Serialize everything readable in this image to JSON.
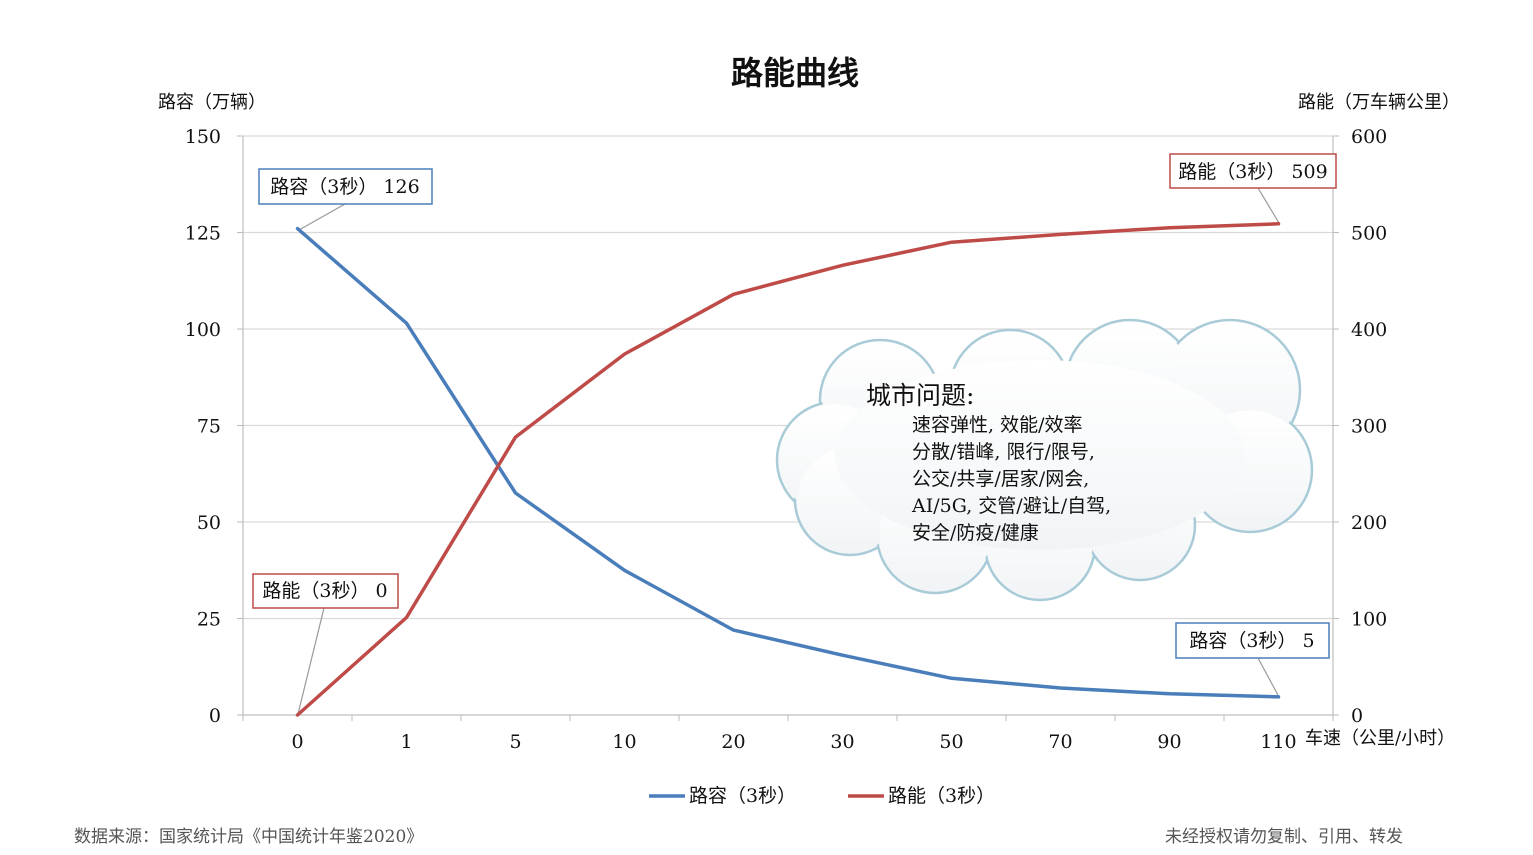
{
  "chart_data": {
    "type": "line",
    "title": "路能曲线",
    "y_left_label": "路容（万辆）",
    "y_right_label": "路能（万车辆公里）",
    "x_label": "车速（公里/小时）",
    "categories": [
      "0",
      "1",
      "5",
      "10",
      "20",
      "30",
      "50",
      "70",
      "90",
      "110"
    ],
    "ylim_left": [
      0,
      150
    ],
    "ylim_right": [
      0,
      600
    ],
    "yticks_left": [
      "0",
      "25",
      "50",
      "75",
      "100",
      "125",
      "150"
    ],
    "yticks_right": [
      "0",
      "100",
      "200",
      "300",
      "400",
      "500",
      "600"
    ],
    "grid": true,
    "legend_position": "bottom",
    "series": [
      {
        "name": "路容（3秒）",
        "axis": "left",
        "color": "#4a7ebb",
        "values": [
          126,
          101.5,
          57.5,
          37.5,
          22,
          15.5,
          9.5,
          7,
          5.5,
          4.7
        ]
      },
      {
        "name": "路能（3秒）",
        "axis": "right",
        "color": "#be4b48",
        "values": [
          0,
          101,
          288,
          374,
          436,
          466,
          490,
          498,
          505,
          509
        ]
      }
    ],
    "annotations": [
      {
        "text": "路容（3秒） 126",
        "color": "#4a7ebb"
      },
      {
        "text": "路能（3秒） 0",
        "color": "#be4b48"
      },
      {
        "text": "路能（3秒） 509",
        "color": "#be4b48"
      },
      {
        "text": "路容（3秒） 5",
        "color": "#4a7ebb"
      }
    ],
    "callout": {
      "title": "城市问题:",
      "lines": [
        "速容弹性, 效能/效率",
        "分散/错峰, 限行/限号,",
        "公交/共享/居家/网会,",
        "AI/5G, 交管/避让/自驾,",
        "安全/防疫/健康"
      ]
    }
  },
  "footer": {
    "source": "数据来源：国家统计局《中国统计年鉴2020》",
    "copyright": "未经授权请勿复制、引用、转发"
  }
}
